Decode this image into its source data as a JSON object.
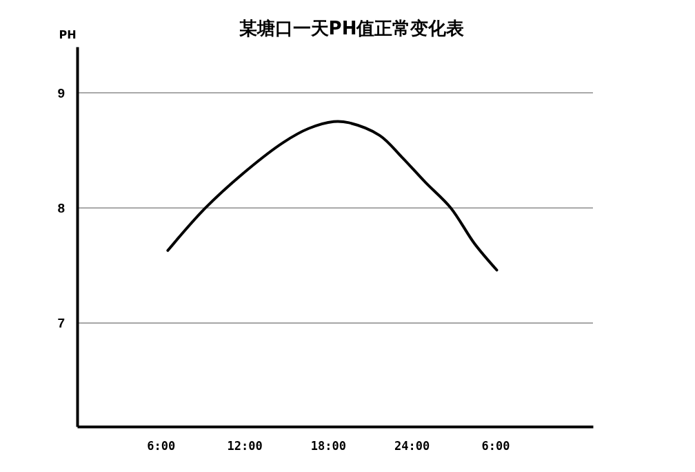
{
  "chart_data": {
    "type": "line",
    "title": "某塘口一天PH值正常变化表",
    "ylabel": "PH",
    "x": [
      "2000-01-01T06:30",
      "2000-01-01T09:12",
      "2000-01-01T12:12",
      "2000-01-01T14:48",
      "2000-01-01T16:36",
      "2000-01-01T18:24",
      "2000-01-01T19:30",
      "2000-01-01T21:42",
      "2000-01-01T23:18",
      "2000-01-02T01:00",
      "2000-01-02T02:48",
      "2000-01-02T04:30",
      "2000-01-02T06:06"
    ],
    "series": [
      {
        "color": "#000000",
        "values": [
          7.63,
          8.0,
          8.33,
          8.57,
          8.69,
          8.75,
          8.74,
          8.63,
          8.44,
          8.22,
          8.0,
          7.69,
          7.46
        ]
      }
    ],
    "xlim": [
      "2000-01-01T00:00",
      "2000-01-02T13:00"
    ],
    "xticks": [
      {
        "value": "2000-01-01T06:00",
        "label": "6:00"
      },
      {
        "value": "2000-01-01T12:00",
        "label": "12:00"
      },
      {
        "value": "2000-01-01T18:00",
        "label": "18:00"
      },
      {
        "value": "2000-01-02T00:00",
        "label": "24:00"
      },
      {
        "value": "2000-01-02T06:00",
        "label": "6:00"
      }
    ],
    "ylim": [
      6.1,
      9.4
    ],
    "yticks": [
      7,
      8,
      9
    ],
    "grid": "y",
    "marker": "none",
    "line_style": "solid"
  }
}
